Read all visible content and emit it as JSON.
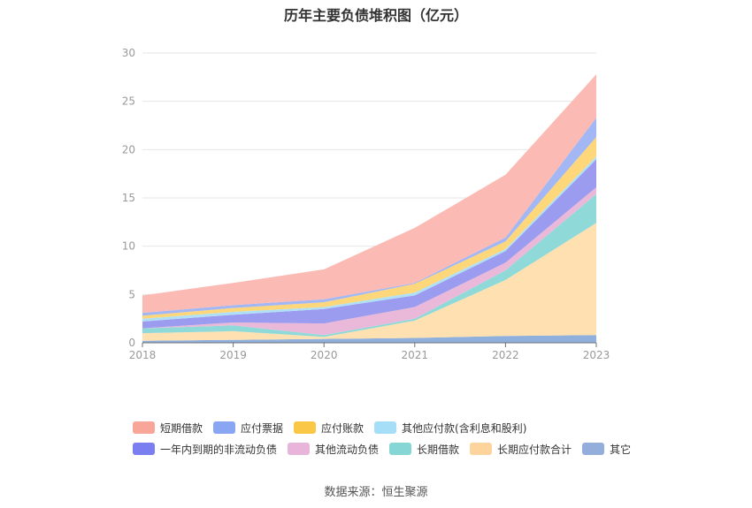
{
  "chart_data": {
    "type": "area",
    "stacked": true,
    "title": "历年主要负债堆积图（亿元）",
    "xlabel": "",
    "ylabel": "",
    "x": [
      "2018",
      "2019",
      "2020",
      "2021",
      "2022",
      "2023"
    ],
    "ylim": [
      0,
      30
    ],
    "yticks": [
      0,
      5,
      10,
      15,
      20,
      25,
      30
    ],
    "grid": true,
    "legend_position": "bottom",
    "series": [
      {
        "name": "其它",
        "color": "#8fb0dc",
        "values": [
          0.2,
          0.3,
          0.4,
          0.5,
          0.7,
          0.8
        ]
      },
      {
        "name": "长期应付款合计",
        "color": "#ffe0b0",
        "values": [
          0.8,
          0.9,
          0.2,
          1.8,
          5.8,
          11.6
        ]
      },
      {
        "name": "长期借款",
        "color": "#8fdad8",
        "values": [
          0.5,
          0.6,
          0.2,
          0.2,
          1.0,
          3.0
        ]
      },
      {
        "name": "其他流动负债",
        "color": "#eab8d8",
        "values": [
          0.0,
          0.3,
          1.2,
          1.2,
          0.8,
          0.7
        ]
      },
      {
        "name": "一年内到期的非流动负债",
        "color": "#9b9bf0",
        "values": [
          0.7,
          0.8,
          1.5,
          1.2,
          1.2,
          2.9
        ]
      },
      {
        "name": "其他应付款(含利息和股利)",
        "color": "#b0e0f5",
        "values": [
          0.3,
          0.3,
          0.2,
          0.3,
          0.2,
          0.3
        ]
      },
      {
        "name": "应付账款",
        "color": "#fdd77a",
        "values": [
          0.3,
          0.4,
          0.5,
          0.9,
          0.8,
          2.0
        ]
      },
      {
        "name": "应付票据",
        "color": "#a3b7f4",
        "values": [
          0.3,
          0.3,
          0.3,
          0.1,
          0.4,
          2.0
        ]
      },
      {
        "name": "短期借款",
        "color": "#fbbbb4",
        "values": [
          1.8,
          2.3,
          3.1,
          5.7,
          6.5,
          4.5
        ]
      }
    ]
  },
  "legend": {
    "rows": [
      [
        {
          "name": "短期借款",
          "color": "#f8a59a"
        },
        {
          "name": "应付票据",
          "color": "#8aa6f2"
        },
        {
          "name": "应付账款",
          "color": "#fbc746"
        },
        {
          "name": "其他应付款(含利息和股利)",
          "color": "#a6def7"
        }
      ],
      [
        {
          "name": "一年内到期的非流动负债",
          "color": "#7b7ef0"
        },
        {
          "name": "其他流动负债",
          "color": "#e8b4da"
        },
        {
          "name": "长期借款",
          "color": "#86d6d6"
        },
        {
          "name": "长期应付款合计",
          "color": "#fdd59c"
        },
        {
          "name": "其它",
          "color": "#94aedb"
        }
      ]
    ]
  },
  "source": "数据来源：恒生聚源"
}
